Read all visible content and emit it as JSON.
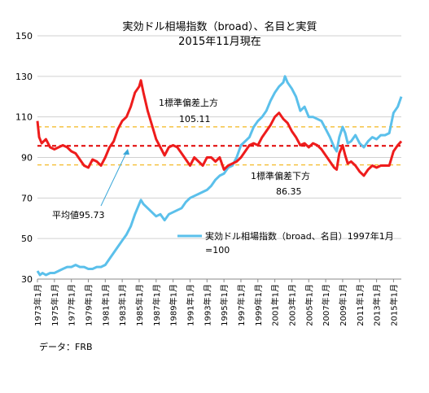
{
  "chart_data": {
    "type": "line",
    "title": "実効ドル相場指数（broad）、名目と実質",
    "subtitle": "2015年11月現在",
    "ylim": [
      30,
      150
    ],
    "y_ticks": [
      "150",
      "130",
      "110",
      "90",
      "70",
      "50",
      "30"
    ],
    "x_ticks": [
      "1973年1月",
      "1975年1月",
      "1977年1月",
      "1979年1月",
      "1981年1月",
      "1983年1月",
      "1985年1月",
      "1987年1月",
      "1989年1月",
      "1991年1月",
      "1993年1月",
      "1995年1月",
      "1997年1月",
      "1999年1月",
      "2001年1月",
      "2003年1月",
      "2005年1月",
      "2007年1月",
      "2009年1月",
      "2011年1月",
      "2013年1月",
      "2015年1月"
    ],
    "x_range": [
      1973.0,
      2015.92
    ],
    "grid": "horizontal",
    "series": [
      {
        "name": "実効ドル相場指数（broad、名目）1997年1月=100",
        "color": "#5bc0eb",
        "points": [
          [
            1973.0,
            34
          ],
          [
            1973.3,
            32
          ],
          [
            1973.6,
            33
          ],
          [
            1974.0,
            32
          ],
          [
            1974.5,
            33
          ],
          [
            1975.0,
            33
          ],
          [
            1975.5,
            34
          ],
          [
            1976.0,
            35
          ],
          [
            1976.5,
            36
          ],
          [
            1977.0,
            36
          ],
          [
            1977.5,
            37
          ],
          [
            1978.0,
            36
          ],
          [
            1978.5,
            36
          ],
          [
            1979.0,
            35
          ],
          [
            1979.5,
            35
          ],
          [
            1980.0,
            36
          ],
          [
            1980.5,
            36
          ],
          [
            1981.0,
            37
          ],
          [
            1981.5,
            40
          ],
          [
            1982.0,
            43
          ],
          [
            1982.5,
            46
          ],
          [
            1983.0,
            49
          ],
          [
            1983.5,
            52
          ],
          [
            1984.0,
            56
          ],
          [
            1984.5,
            62
          ],
          [
            1985.0,
            67
          ],
          [
            1985.2,
            69
          ],
          [
            1985.5,
            67
          ],
          [
            1986.0,
            65
          ],
          [
            1986.5,
            63
          ],
          [
            1987.0,
            61
          ],
          [
            1987.5,
            62
          ],
          [
            1988.0,
            59
          ],
          [
            1988.5,
            62
          ],
          [
            1989.0,
            63
          ],
          [
            1989.5,
            64
          ],
          [
            1990.0,
            65
          ],
          [
            1990.5,
            68
          ],
          [
            1991.0,
            70
          ],
          [
            1991.5,
            71
          ],
          [
            1992.0,
            72
          ],
          [
            1992.5,
            73
          ],
          [
            1993.0,
            74
          ],
          [
            1993.5,
            76
          ],
          [
            1994.0,
            79
          ],
          [
            1994.5,
            81
          ],
          [
            1995.0,
            82
          ],
          [
            1995.5,
            85
          ],
          [
            1996.0,
            86
          ],
          [
            1996.5,
            90
          ],
          [
            1997.0,
            96
          ],
          [
            1997.5,
            98
          ],
          [
            1998.0,
            100
          ],
          [
            1998.5,
            105
          ],
          [
            1999.0,
            108
          ],
          [
            1999.5,
            110
          ],
          [
            2000.0,
            113
          ],
          [
            2000.5,
            118
          ],
          [
            2001.0,
            122
          ],
          [
            2001.5,
            125
          ],
          [
            2002.0,
            127
          ],
          [
            2002.2,
            130
          ],
          [
            2002.5,
            127
          ],
          [
            2003.0,
            124
          ],
          [
            2003.5,
            120
          ],
          [
            2004.0,
            113
          ],
          [
            2004.5,
            115
          ],
          [
            2005.0,
            110
          ],
          [
            2005.5,
            110
          ],
          [
            2006.0,
            109
          ],
          [
            2006.5,
            108
          ],
          [
            2007.0,
            104
          ],
          [
            2007.5,
            100
          ],
          [
            2008.0,
            95
          ],
          [
            2008.3,
            93
          ],
          [
            2008.6,
            100
          ],
          [
            2009.0,
            105
          ],
          [
            2009.3,
            102
          ],
          [
            2009.6,
            97
          ],
          [
            2010.0,
            98
          ],
          [
            2010.5,
            101
          ],
          [
            2011.0,
            97
          ],
          [
            2011.5,
            95
          ],
          [
            2012.0,
            98
          ],
          [
            2012.5,
            100
          ],
          [
            2013.0,
            99
          ],
          [
            2013.5,
            101
          ],
          [
            2014.0,
            101
          ],
          [
            2014.5,
            102
          ],
          [
            2015.0,
            112
          ],
          [
            2015.5,
            115
          ],
          [
            2015.92,
            120
          ]
        ]
      },
      {
        "color": "#ee1c1c",
        "points": [
          [
            1973.0,
            108
          ],
          [
            1973.2,
            100
          ],
          [
            1973.5,
            97
          ],
          [
            1974.0,
            99
          ],
          [
            1974.5,
            95
          ],
          [
            1975.0,
            94
          ],
          [
            1975.5,
            95
          ],
          [
            1976.0,
            96
          ],
          [
            1976.5,
            95
          ],
          [
            1977.0,
            93
          ],
          [
            1977.5,
            92
          ],
          [
            1978.0,
            89
          ],
          [
            1978.5,
            86
          ],
          [
            1979.0,
            85
          ],
          [
            1979.5,
            89
          ],
          [
            1980.0,
            88
          ],
          [
            1980.5,
            86
          ],
          [
            1981.0,
            90
          ],
          [
            1981.5,
            95
          ],
          [
            1982.0,
            98
          ],
          [
            1982.5,
            104
          ],
          [
            1983.0,
            108
          ],
          [
            1983.5,
            110
          ],
          [
            1984.0,
            115
          ],
          [
            1984.5,
            122
          ],
          [
            1985.0,
            125
          ],
          [
            1985.2,
            128
          ],
          [
            1985.5,
            122
          ],
          [
            1986.0,
            113
          ],
          [
            1986.5,
            106
          ],
          [
            1987.0,
            99
          ],
          [
            1987.5,
            95
          ],
          [
            1988.0,
            91
          ],
          [
            1988.5,
            95
          ],
          [
            1989.0,
            96
          ],
          [
            1989.5,
            95
          ],
          [
            1990.0,
            92
          ],
          [
            1990.5,
            89
          ],
          [
            1991.0,
            86
          ],
          [
            1991.5,
            90
          ],
          [
            1992.0,
            88
          ],
          [
            1992.5,
            86
          ],
          [
            1993.0,
            90
          ],
          [
            1993.5,
            90
          ],
          [
            1994.0,
            88
          ],
          [
            1994.5,
            90
          ],
          [
            1995.0,
            84
          ],
          [
            1995.5,
            86
          ],
          [
            1996.0,
            87
          ],
          [
            1996.5,
            88
          ],
          [
            1997.0,
            90
          ],
          [
            1997.5,
            93
          ],
          [
            1998.0,
            96
          ],
          [
            1998.5,
            97
          ],
          [
            1999.0,
            96
          ],
          [
            1999.5,
            100
          ],
          [
            2000.0,
            103
          ],
          [
            2000.5,
            106
          ],
          [
            2001.0,
            110
          ],
          [
            2001.5,
            112
          ],
          [
            2002.0,
            109
          ],
          [
            2002.5,
            107
          ],
          [
            2003.0,
            103
          ],
          [
            2003.5,
            100
          ],
          [
            2004.0,
            96
          ],
          [
            2004.5,
            97
          ],
          [
            2005.0,
            95
          ],
          [
            2005.5,
            97
          ],
          [
            2006.0,
            96
          ],
          [
            2006.5,
            94
          ],
          [
            2007.0,
            91
          ],
          [
            2007.5,
            88
          ],
          [
            2008.0,
            85
          ],
          [
            2008.3,
            84
          ],
          [
            2008.6,
            92
          ],
          [
            2009.0,
            96
          ],
          [
            2009.3,
            91
          ],
          [
            2009.6,
            87
          ],
          [
            2010.0,
            88
          ],
          [
            2010.5,
            86
          ],
          [
            2011.0,
            83
          ],
          [
            2011.5,
            81
          ],
          [
            2012.0,
            84
          ],
          [
            2012.5,
            86
          ],
          [
            2013.0,
            85
          ],
          [
            2013.5,
            86
          ],
          [
            2014.0,
            86
          ],
          [
            2014.5,
            86
          ],
          [
            2015.0,
            93
          ],
          [
            2015.5,
            96
          ],
          [
            2015.92,
            98
          ]
        ]
      }
    ],
    "reference_lines": [
      {
        "value": 105.11,
        "color": "#f5c242",
        "style": "dashed"
      },
      {
        "value": 95.73,
        "color": "#e00000",
        "style": "dashed"
      },
      {
        "value": 86.35,
        "color": "#f5c242",
        "style": "dashed"
      }
    ],
    "annotations": {
      "upper_label": "1標準偏差上方",
      "upper_value": "105.11",
      "lower_label": "1標準偏差下方",
      "lower_value": "86.35",
      "mean_label": "平均値95.73"
    },
    "legend": {
      "line1": "実効ドル相場指数（broad、名目）1997年1月",
      "line2": "=100",
      "placement": "lower-right"
    },
    "source": "データ：FRB"
  }
}
